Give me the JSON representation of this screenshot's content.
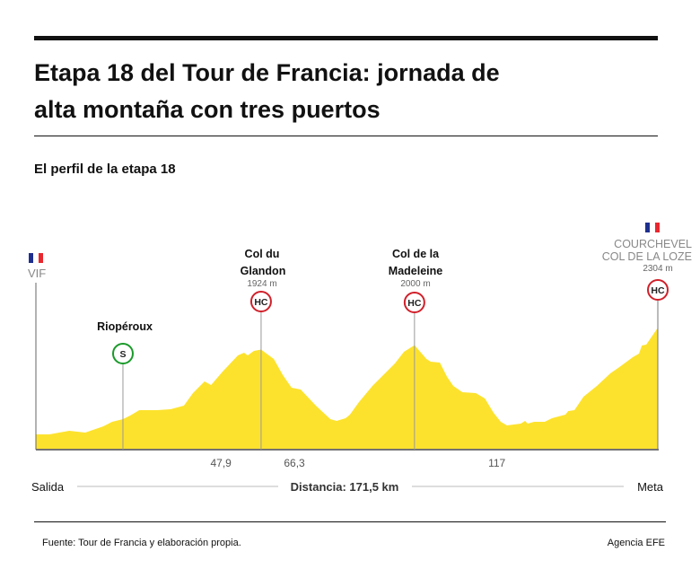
{
  "header": {
    "title_line1": "Etapa 18 del Tour de Francia: jornada de",
    "title_line2": "alta montaña con tres puertos",
    "subtitle": "El perfil de la etapa 18"
  },
  "chart_data": {
    "type": "area",
    "title": "El perfil de la etapa 18",
    "xlabel": "Distancia: 171,5 km",
    "xlim": [
      0,
      171.5
    ],
    "ylim": [
      200,
      2304
    ],
    "fill_color": "#fde22d",
    "grid": false,
    "start_label": "Salida",
    "end_label": "Meta",
    "x_ticks": [
      {
        "km": 47.9,
        "label": "47,9"
      },
      {
        "km": 66.3,
        "label": "66,3"
      },
      {
        "km": 117,
        "label": "117"
      }
    ],
    "profile": [
      [
        0,
        450
      ],
      [
        3.7,
        450
      ],
      [
        6.4,
        481
      ],
      [
        9.2,
        512
      ],
      [
        13.6,
        481
      ],
      [
        18.6,
        590
      ],
      [
        21.0,
        668
      ],
      [
        24.0,
        715
      ],
      [
        26.0,
        777
      ],
      [
        28.5,
        871
      ],
      [
        33.4,
        871
      ],
      [
        37.1,
        886
      ],
      [
        40.8,
        949
      ],
      [
        43.3,
        1167
      ],
      [
        46.5,
        1370
      ],
      [
        48.3,
        1308
      ],
      [
        51.5,
        1542
      ],
      [
        55.7,
        1822
      ],
      [
        57.4,
        1869
      ],
      [
        58.4,
        1822
      ],
      [
        60.1,
        1900
      ],
      [
        62.1,
        1924
      ],
      [
        65.6,
        1760
      ],
      [
        68.1,
        1479
      ],
      [
        70.5,
        1261
      ],
      [
        73.0,
        1230
      ],
      [
        77.2,
        949
      ],
      [
        81.2,
        715
      ],
      [
        82.9,
        684
      ],
      [
        85.4,
        730
      ],
      [
        86.6,
        793
      ],
      [
        89.1,
        1011
      ],
      [
        92.8,
        1292
      ],
      [
        99.0,
        1682
      ],
      [
        101.5,
        1885
      ],
      [
        104.4,
        2000
      ],
      [
        107.7,
        1760
      ],
      [
        108.9,
        1713
      ],
      [
        111.4,
        1698
      ],
      [
        113.4,
        1448
      ],
      [
        115.1,
        1292
      ],
      [
        117.6,
        1183
      ],
      [
        121.3,
        1167
      ],
      [
        123.8,
        1074
      ],
      [
        126.2,
        824
      ],
      [
        128.2,
        668
      ],
      [
        129.9,
        606
      ],
      [
        133.7,
        637
      ],
      [
        134.9,
        684
      ],
      [
        135.6,
        637
      ],
      [
        137.4,
        668
      ],
      [
        140.3,
        668
      ],
      [
        142.3,
        730
      ],
      [
        146.0,
        793
      ],
      [
        146.8,
        855
      ],
      [
        148.5,
        871
      ],
      [
        151.0,
        1105
      ],
      [
        154.7,
        1292
      ],
      [
        158.4,
        1510
      ],
      [
        160.9,
        1620
      ],
      [
        164.6,
        1791
      ],
      [
        166.3,
        1854
      ],
      [
        167.1,
        1994
      ],
      [
        168.3,
        2010
      ],
      [
        171.5,
        2304
      ]
    ],
    "points": [
      {
        "name": "VIF",
        "km": 0,
        "flag": true,
        "category": "",
        "altitude": ""
      },
      {
        "name": "Riopéroux",
        "km": 24.0,
        "category": "S",
        "category_color": "#1a9a2a",
        "altitude": ""
      },
      {
        "name_line1": "Col du",
        "name_line2": "Glandon",
        "km": 62.1,
        "category": "HC",
        "category_color": "#d0202a",
        "altitude": "1924 m"
      },
      {
        "name_line1": "Col de la",
        "name_line2": "Madeleine",
        "km": 104.4,
        "category": "HC",
        "category_color": "#d0202a",
        "altitude": "2000 m"
      },
      {
        "name_line1": "COURCHEVEL",
        "name_line2": "COL DE LA LOZE",
        "km": 171.5,
        "flag": true,
        "category": "HC",
        "category_color": "#d0202a",
        "altitude": "2304 m"
      }
    ]
  },
  "footer": {
    "source": "Fuente: Tour de Francia y elaboración propia.",
    "agency": "Agencia EFE"
  },
  "colors": {
    "flag_blue": "#1f2f8f",
    "flag_red": "#e8282e",
    "profile": "#fde22d"
  }
}
